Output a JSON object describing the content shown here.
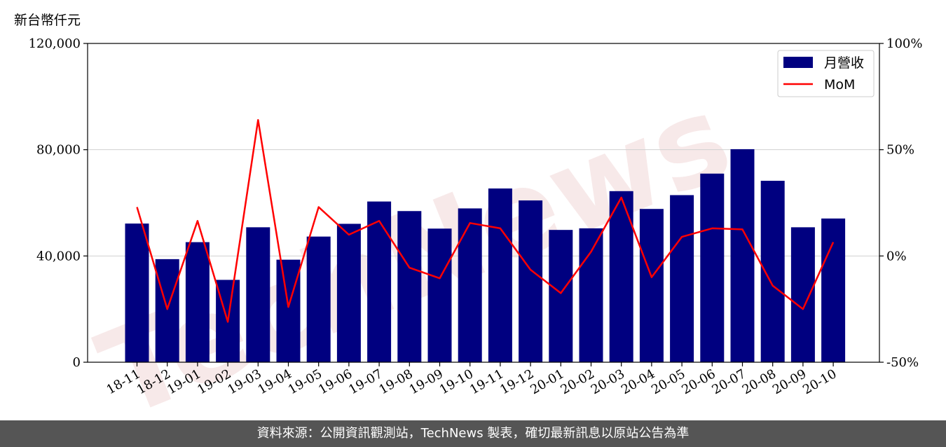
{
  "unit_label": "新台幣仟元",
  "footer": "資料來源：公開資訊觀測站，TechNews 製表，確切最新訊息以原站公告為準",
  "watermark": "TechNews",
  "colors": {
    "bar": "#000080",
    "line": "#ff0000",
    "grid": "#d0d0d0"
  },
  "chart_data": {
    "type": "bar",
    "categories": [
      "18-11",
      "18-12",
      "19-01",
      "19-02",
      "19-03",
      "19-04",
      "19-05",
      "19-06",
      "19-07",
      "19-08",
      "19-09",
      "19-10",
      "19-11",
      "19-12",
      "20-01",
      "20-02",
      "20-03",
      "20-04",
      "20-05",
      "20-06",
      "20-07",
      "20-08",
      "20-09",
      "20-10"
    ],
    "series": [
      {
        "name": "月營收",
        "type": "bar",
        "axis": "left",
        "values": [
          52200,
          38800,
          45200,
          31000,
          50800,
          38600,
          47300,
          52100,
          60500,
          56900,
          50300,
          57900,
          65400,
          60900,
          49800,
          50400,
          64400,
          57700,
          62900,
          71000,
          80200,
          68300,
          50800,
          54100
        ]
      },
      {
        "name": "MoM",
        "type": "line",
        "axis": "right",
        "values": [
          23,
          -25,
          16.5,
          -31,
          64,
          -24,
          23,
          10,
          16.5,
          -5.5,
          -10.5,
          15.5,
          13,
          -6.5,
          -17.5,
          2,
          27.5,
          -10,
          9,
          13,
          12.5,
          -14,
          -25,
          6.5
        ]
      }
    ],
    "y_left": {
      "ticks": [
        "0",
        "40,000",
        "80,000",
        "120,000"
      ],
      "ylim": [
        0,
        120000
      ]
    },
    "y_right": {
      "ticks": [
        "-50%",
        "0%",
        "50%",
        "100%"
      ],
      "ylim": [
        -50,
        100
      ]
    },
    "grid": "horizontal",
    "legend": "top-right"
  }
}
